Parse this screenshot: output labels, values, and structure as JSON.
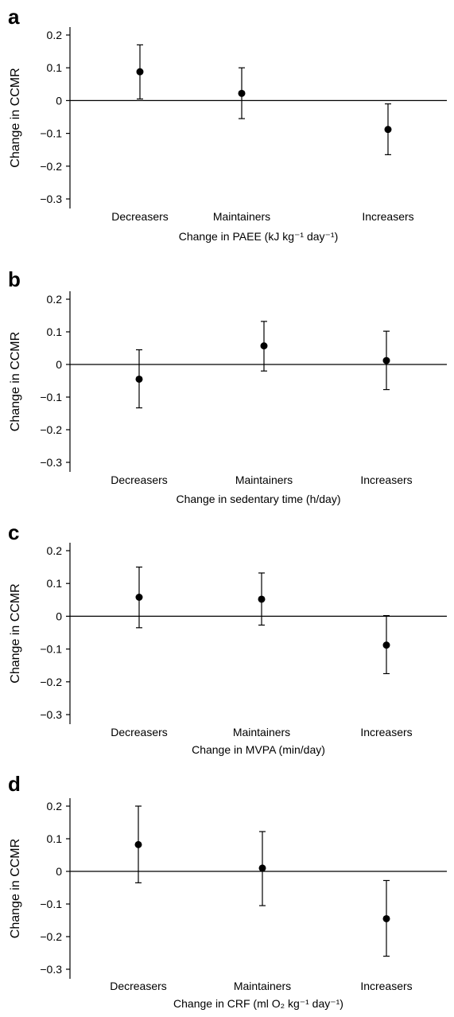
{
  "chart_data": [
    {
      "panel": "a",
      "type": "scatter",
      "categories": [
        "Decreasers",
        "Maintainers",
        "Increasers"
      ],
      "series": [
        {
          "values": [
            0.088,
            0.022,
            -0.088
          ],
          "ci_lower": [
            0.005,
            -0.055,
            -0.165
          ],
          "ci_upper": [
            0.17,
            0.1,
            -0.01
          ]
        }
      ],
      "xlabel": "Change in PAEE (kJ kg⁻¹ day⁻¹)",
      "ylabel": "Change in CCMR",
      "ylim": [
        -0.3,
        0.2
      ],
      "yticks": [
        "0.2",
        "0.1",
        "0",
        "−0.1",
        "−0.2",
        "−0.3"
      ],
      "zero_line": true,
      "grid": false
    },
    {
      "panel": "b",
      "type": "scatter",
      "categories": [
        "Decreasers",
        "Maintainers",
        "Increasers"
      ],
      "series": [
        {
          "values": [
            -0.045,
            0.057,
            0.012
          ],
          "ci_lower": [
            -0.133,
            -0.02,
            -0.077
          ],
          "ci_upper": [
            0.045,
            0.132,
            0.102
          ]
        }
      ],
      "xlabel": "Change in sedentary time (h/day)",
      "ylabel": "Change in CCMR",
      "ylim": [
        -0.3,
        0.2
      ],
      "yticks": [
        "0.2",
        "0.1",
        "0",
        "−0.1",
        "−0.2",
        "−0.3"
      ],
      "zero_line": true,
      "grid": false
    },
    {
      "panel": "c",
      "type": "scatter",
      "categories": [
        "Decreasers",
        "Maintainers",
        "Increasers"
      ],
      "series": [
        {
          "values": [
            0.058,
            0.052,
            -0.088
          ],
          "ci_lower": [
            -0.035,
            -0.027,
            -0.175
          ],
          "ci_upper": [
            0.15,
            0.132,
            0.002
          ]
        }
      ],
      "xlabel": "Change in MVPA (min/day)",
      "ylabel": "Change in CCMR",
      "ylim": [
        -0.3,
        0.2
      ],
      "yticks": [
        "0.2",
        "0.1",
        "0",
        "−0.1",
        "−0.2",
        "−0.3"
      ],
      "zero_line": true,
      "grid": false
    },
    {
      "panel": "d",
      "type": "scatter",
      "categories": [
        "Decreasers",
        "Maintainers",
        "Increasers"
      ],
      "series": [
        {
          "values": [
            0.082,
            0.01,
            -0.145
          ],
          "ci_lower": [
            -0.035,
            -0.105,
            -0.26
          ],
          "ci_upper": [
            0.2,
            0.122,
            -0.028
          ]
        }
      ],
      "xlabel": "Change in CRF (ml O₂ kg⁻¹ day⁻¹)",
      "ylabel": "Change in CCMR",
      "ylim": [
        -0.3,
        0.2
      ],
      "yticks": [
        "0.2",
        "0.1",
        "0",
        "−0.1",
        "−0.2",
        "−0.3"
      ],
      "zero_line": true,
      "grid": false
    }
  ],
  "panel_letters": [
    "a",
    "b",
    "c",
    "d"
  ],
  "colors": {
    "marker": "#000000",
    "axis": "#000000",
    "background": "#ffffff"
  }
}
